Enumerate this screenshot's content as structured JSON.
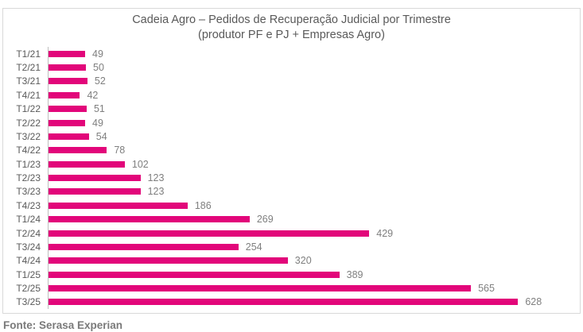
{
  "chart_data": {
    "type": "bar",
    "orientation": "horizontal",
    "title": "Cadeia Agro – Pedidos de Recuperação Judicial por Trimestre",
    "subtitle": "(produtor PF e PJ + Empresas Agro)",
    "categories": [
      "T1/21",
      "T2/21",
      "T3/21",
      "T4/21",
      "T1/22",
      "T2/22",
      "T3/22",
      "T4/22",
      "T1/23",
      "T2/23",
      "T3/23",
      "T4/23",
      "T1/24",
      "T2/24",
      "T3/24",
      "T4/24",
      "T1/25",
      "T2/25",
      "T3/25"
    ],
    "values": [
      49,
      50,
      52,
      42,
      51,
      49,
      54,
      78,
      102,
      123,
      123,
      186,
      269,
      429,
      254,
      320,
      389,
      565,
      628
    ],
    "data_labels": true,
    "grid": false,
    "legend": false,
    "xlim": [
      0,
      700
    ],
    "bar_color": "#e2067a"
  },
  "footer": {
    "source": "Fonte: Serasa Experian"
  },
  "colors": {
    "bar": "#e2067a",
    "title_text": "#595959",
    "axis_line": "#bfbfbf",
    "frame_border": "#d9d9d9",
    "value_labels": "#7f7f7f",
    "source_text": "#7a7a7a"
  }
}
